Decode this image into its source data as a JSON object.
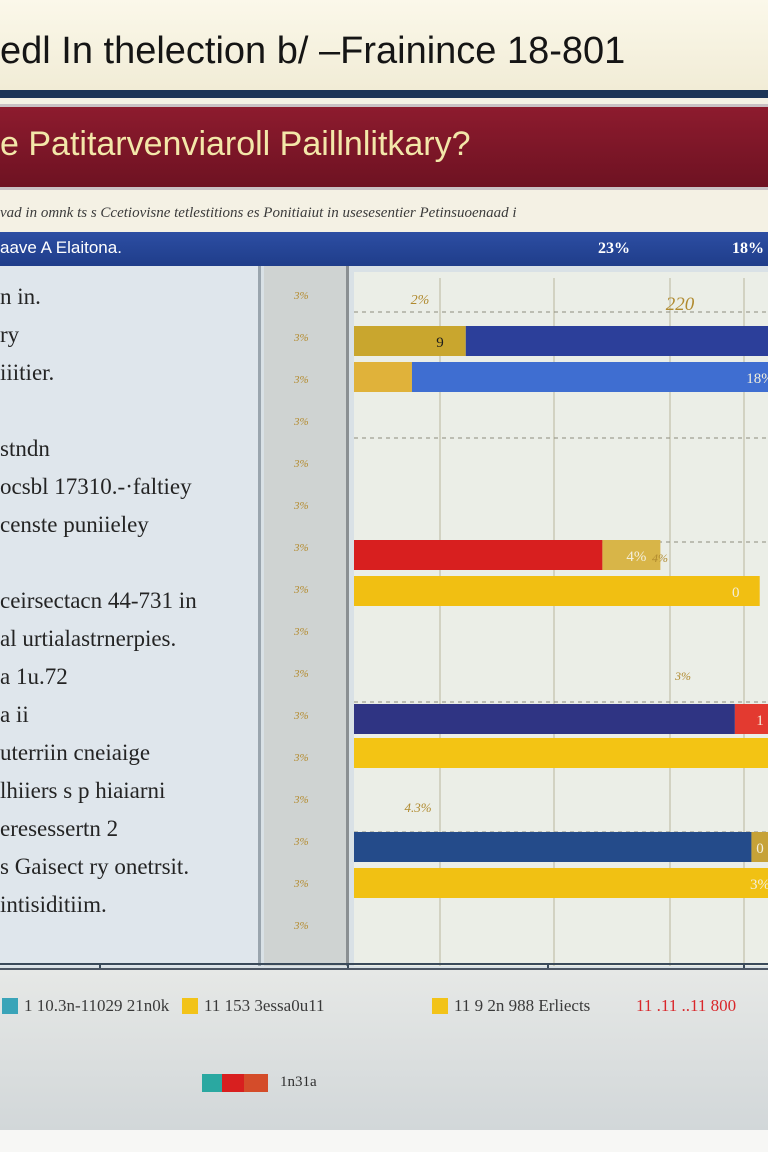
{
  "title": "edl In thelection b/ –Frainince  18-801",
  "subtitle": "e Patitarvenviaroll Paillnlitkary?",
  "caption": "vad in omnk ts s Ccetiovisne tetlestitions es Ponitiaiut in usesesentier Petinsuoenaad i",
  "panel_header": {
    "label": "aave A Elaitona.",
    "value_1": "23%",
    "value_2": "18%"
  },
  "row_labels": [
    "n in.",
    "ry",
    "iiitier.",
    "",
    "stndn",
    "ocsbl 17310.-·faltiey",
    "censte puniieley",
    "",
    "ceirsectacn 44-731 in",
    "al urtialastrnerpies.",
    "a  1u.72",
    "a ii",
    "uterriin cneiaige",
    "lhiiers s p hiaiarni",
    "eresessertn  2",
    "s Gaisect ry onetrsit.",
    "intisiditiim."
  ],
  "row_ticks": [
    "3%",
    "3%",
    "3%",
    "3%",
    "3%",
    "3%",
    "3%",
    "3%",
    "3%",
    "3%",
    "3%",
    "3%",
    "3%",
    "3%",
    "3%",
    "3%"
  ],
  "chart_data": {
    "type": "bar",
    "orientation": "horizontal",
    "xlim": [
      0,
      100
    ],
    "grid": true,
    "bars": [
      {
        "segments": [
          {
            "value": 27,
            "color": "#c9a62e"
          },
          {
            "value": 83,
            "color": "#2c3f9a"
          }
        ],
        "label": "9"
      },
      {
        "segments": [
          {
            "value": 14,
            "color": "#e0b23a"
          },
          {
            "value": 96,
            "color": "#3f6ed1"
          }
        ],
        "label": "18%"
      },
      {
        "segments": [
          {
            "value": 60,
            "color": "#d81f1f"
          },
          {
            "value": 14,
            "color": "#d8b548"
          }
        ],
        "label": "4%"
      },
      {
        "segments": [
          {
            "value": 98,
            "color": "#f1bf12"
          }
        ],
        "label": "0"
      },
      {
        "segments": [
          {
            "value": 92,
            "color": "#2f3483"
          },
          {
            "value": 18,
            "color": "#e33a30"
          }
        ],
        "label": "1"
      },
      {
        "segments": [
          {
            "value": 110,
            "color": "#f3c414"
          }
        ],
        "label": ""
      },
      {
        "segments": [
          {
            "value": 96,
            "color": "#244b8a"
          },
          {
            "value": 14,
            "color": "#c6a238"
          }
        ],
        "label": "0"
      },
      {
        "segments": [
          {
            "value": 110,
            "color": "#f1c113"
          }
        ],
        "label": "3%"
      }
    ],
    "annotations": [
      {
        "text": "2%",
        "row": 0
      },
      {
        "text": "220",
        "row": 0
      },
      {
        "text": "4%",
        "row": 2
      },
      {
        "text": "3%",
        "row": 4
      },
      {
        "text": "4.3%",
        "row": 5
      }
    ]
  },
  "legend": [
    {
      "label": "1 10.3n-11029 21n0k",
      "color": "#3aa4b8"
    },
    {
      "label": "11 153 3essa0u11",
      "color": "#f2c318"
    },
    {
      "label": "11 9 2n 988 Erliects",
      "color": "#f2c318"
    },
    {
      "label": "11 .11 ..11 800",
      "color": "#d9262a"
    }
  ],
  "footer_text": "1n31a",
  "colors": {
    "navy": "#1d3557",
    "maroon": "#7e1628",
    "header_blue": "#2a4a9e",
    "gold": "#f2c318",
    "red": "#d81f1f"
  }
}
